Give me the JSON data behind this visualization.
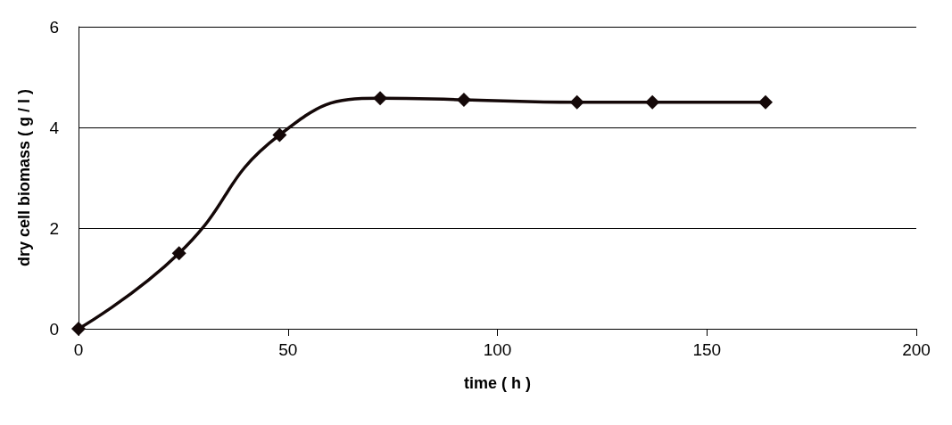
{
  "chart_data": {
    "type": "line",
    "xlabel": "time ( h )",
    "ylabel": "dry cell biomass ( g / l )",
    "x": [
      0,
      24,
      48,
      72,
      92,
      119,
      137,
      164
    ],
    "series": [
      {
        "color": "#140808",
        "values": [
          0,
          1.5,
          3.85,
          4.58,
          4.55,
          4.5,
          4.5,
          4.5
        ]
      }
    ],
    "xlim": [
      0,
      200
    ],
    "xticks": [
      0,
      50,
      100,
      150,
      200
    ],
    "ylim": [
      0,
      6
    ],
    "yticks": [
      0,
      2,
      4,
      6
    ],
    "grid": "y",
    "marker": "diamond",
    "line_style": "solid"
  }
}
